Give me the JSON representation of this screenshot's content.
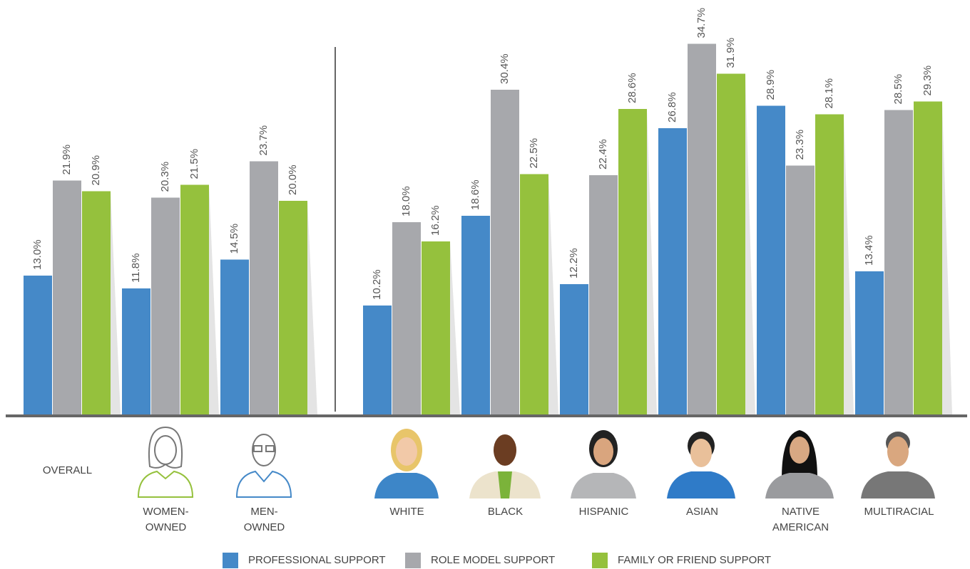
{
  "chart_data": {
    "type": "bar",
    "categories": [
      "OVERALL",
      "WOMEN-\nOWNED",
      "MEN-\nOWNED",
      "WHITE",
      "BLACK",
      "HISPANIC",
      "ASIAN",
      "NATIVE\nAMERICAN",
      "MULTIRACIAL"
    ],
    "series": [
      {
        "name": "PROFESSIONAL SUPPORT",
        "color": "#4589c8",
        "values": [
          13.0,
          11.8,
          14.5,
          10.2,
          18.6,
          12.2,
          26.8,
          28.9,
          13.4
        ],
        "value_labels": [
          "13.0%",
          "11.8%",
          "14.5%",
          "10.2%",
          "18.6%",
          "12.2%",
          "26.8%",
          "28.9%",
          "13.4%"
        ]
      },
      {
        "name": "ROLE MODEL SUPPORT",
        "color": "#a7a8ac",
        "values": [
          21.9,
          20.3,
          23.7,
          18.0,
          30.4,
          22.4,
          34.7,
          23.3,
          28.5
        ],
        "value_labels": [
          "21.9%",
          "20.3%",
          "23.7%",
          "18.0%",
          "30.4%",
          "22.4%",
          "34.7%",
          "23.3%",
          "28.5%"
        ]
      },
      {
        "name": "FAMILY OR FRIEND SUPPORT",
        "color": "#95c13d",
        "values": [
          20.9,
          21.5,
          20.0,
          16.2,
          22.5,
          28.6,
          31.9,
          28.1,
          29.3
        ],
        "value_labels": [
          "20.9%",
          "21.5%",
          "20.0%",
          "16.2%",
          "22.5%",
          "28.6%",
          "31.9%",
          "28.1%",
          "29.3%"
        ]
      }
    ]
  }
}
